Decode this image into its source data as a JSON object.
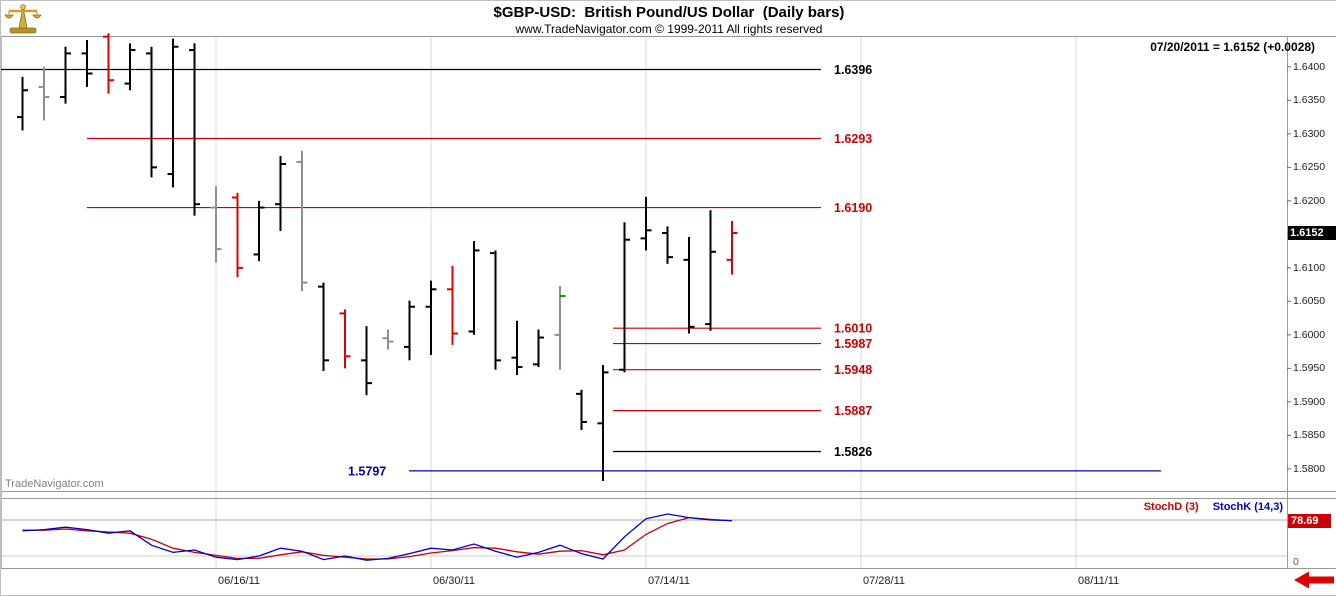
{
  "header": {
    "title": "$GBP-USD:  British Pound/US Dollar  (Daily bars)",
    "copyright": "www.TradeNavigator.com © 1999-2011 All rights reserved",
    "quote_line": "07/20/2011 = 1.6152 (+0.0028)",
    "logo_icon": "balance-scale-icon"
  },
  "watermark": "TradeNavigator.com",
  "price_axis": {
    "tick_labels": [
      "1.6400",
      "1.6350",
      "1.6300",
      "1.6250",
      "1.6200",
      "1.6150",
      "1.6100",
      "1.6050",
      "1.6000",
      "1.5950",
      "1.5900",
      "1.5850",
      "1.5800"
    ],
    "last_price_label": "1.6152"
  },
  "indicator_panel": {
    "legend": [
      {
        "label": "StochD (3)",
        "color": "#cc0000"
      },
      {
        "label": "StochK (14,3)",
        "color": "#0000cc"
      }
    ],
    "last_value_label": "78.69",
    "zero_label": "0",
    "scroll_arrow_icon": "scroll-left-arrow-icon"
  },
  "chart_data": {
    "type": "ohlc-bar-with-stochastic",
    "title": "$GBP-USD: British Pound/US Dollar (Daily bars)",
    "subtitle": "www.TradeNavigator.com © 1999-2011 All rights reserved",
    "quote_date": "07/20/2011",
    "last_price": 1.6152,
    "change": 0.0028,
    "ylim": [
      1.5767,
      1.6446
    ],
    "grid": "vertical-date-lines",
    "bars": [
      {
        "date": "06/03/11",
        "o": 1.6325,
        "h": 1.6385,
        "l": 1.6305,
        "c": 1.6365,
        "color": "black"
      },
      {
        "date": "06/06/11",
        "o": 1.637,
        "h": 1.64,
        "l": 1.632,
        "c": 1.6355,
        "color": "gray"
      },
      {
        "date": "06/07/11",
        "o": 1.6355,
        "h": 1.643,
        "l": 1.6345,
        "c": 1.642,
        "color": "black"
      },
      {
        "date": "06/08/11",
        "o": 1.642,
        "h": 1.644,
        "l": 1.637,
        "c": 1.639,
        "color": "black"
      },
      {
        "date": "06/09/11",
        "o": 1.6445,
        "h": 1.645,
        "l": 1.636,
        "c": 1.638,
        "color": "red"
      },
      {
        "date": "06/10/11",
        "o": 1.6375,
        "h": 1.6435,
        "l": 1.6365,
        "c": 1.6425,
        "color": "black"
      },
      {
        "date": "06/13/11",
        "o": 1.642,
        "h": 1.643,
        "l": 1.6235,
        "c": 1.625,
        "color": "black"
      },
      {
        "date": "06/14/11",
        "o": 1.624,
        "h": 1.6442,
        "l": 1.622,
        "c": 1.643,
        "color": "black"
      },
      {
        "date": "06/15/11",
        "o": 1.6425,
        "h": 1.6435,
        "l": 1.6178,
        "c": 1.6195,
        "color": "black"
      },
      {
        "date": "06/16/11",
        "o": 1.619,
        "h": 1.6222,
        "l": 1.6108,
        "c": 1.6128,
        "color": "gray"
      },
      {
        "date": "06/17/11",
        "o": 1.6205,
        "h": 1.6212,
        "l": 1.6086,
        "c": 1.61,
        "color": "red"
      },
      {
        "date": "06/20/11",
        "o": 1.612,
        "h": 1.62,
        "l": 1.611,
        "c": 1.619,
        "color": "black"
      },
      {
        "date": "06/21/11",
        "o": 1.6195,
        "h": 1.6267,
        "l": 1.6155,
        "c": 1.6255,
        "color": "black"
      },
      {
        "date": "06/22/11",
        "o": 1.6258,
        "h": 1.6275,
        "l": 1.6065,
        "c": 1.6078,
        "color": "gray"
      },
      {
        "date": "06/23/11",
        "o": 1.6072,
        "h": 1.6078,
        "l": 1.5946,
        "c": 1.5962,
        "color": "black"
      },
      {
        "date": "06/24/11",
        "o": 1.6032,
        "h": 1.6038,
        "l": 1.595,
        "c": 1.5968,
        "color": "red"
      },
      {
        "date": "06/27/11",
        "o": 1.5962,
        "h": 1.6013,
        "l": 1.591,
        "c": 1.5928,
        "color": "black"
      },
      {
        "date": "06/28/11",
        "o": 1.5995,
        "h": 1.6008,
        "l": 1.5978,
        "c": 1.599,
        "color": "gray"
      },
      {
        "date": "06/29/11",
        "o": 1.5982,
        "h": 1.6051,
        "l": 1.5962,
        "c": 1.6042,
        "color": "black"
      },
      {
        "date": "06/30/11",
        "o": 1.6042,
        "h": 1.6081,
        "l": 1.597,
        "c": 1.6068,
        "color": "black"
      },
      {
        "date": "07/01/11",
        "o": 1.6068,
        "h": 1.6103,
        "l": 1.5985,
        "c": 1.6002,
        "color": "red"
      },
      {
        "date": "07/04/11",
        "o": 1.6005,
        "h": 1.614,
        "l": 1.6,
        "c": 1.6126,
        "color": "black"
      },
      {
        "date": "07/05/11",
        "o": 1.6122,
        "h": 1.6126,
        "l": 1.5948,
        "c": 1.5962,
        "color": "black"
      },
      {
        "date": "07/06/11",
        "o": 1.5966,
        "h": 1.6021,
        "l": 1.594,
        "c": 1.5952,
        "color": "black"
      },
      {
        "date": "07/07/11",
        "o": 1.5956,
        "h": 1.6008,
        "l": 1.5952,
        "c": 1.5996,
        "color": "black"
      },
      {
        "date": "07/08/11",
        "o": 1.6,
        "h": 1.6073,
        "l": 1.5948,
        "c": 1.6058,
        "color": "gray",
        "close_color": "green"
      },
      {
        "date": "07/11/11",
        "o": 1.5912,
        "h": 1.5918,
        "l": 1.5858,
        "c": 1.587,
        "color": "black"
      },
      {
        "date": "07/12/11",
        "o": 1.5868,
        "h": 1.5955,
        "l": 1.5782,
        "c": 1.5944,
        "color": "black"
      },
      {
        "date": "07/13/11",
        "o": 1.5948,
        "h": 1.6168,
        "l": 1.5944,
        "c": 1.6142,
        "color": "black"
      },
      {
        "date": "07/14/11",
        "o": 1.6144,
        "h": 1.6206,
        "l": 1.6126,
        "c": 1.6156,
        "color": "black"
      },
      {
        "date": "07/15/11",
        "o": 1.6152,
        "h": 1.6162,
        "l": 1.6106,
        "c": 1.6116,
        "color": "black"
      },
      {
        "date": "07/18/11",
        "o": 1.6112,
        "h": 1.6146,
        "l": 1.6002,
        "c": 1.6012,
        "color": "black"
      },
      {
        "date": "07/19/11",
        "o": 1.6016,
        "h": 1.6186,
        "l": 1.6006,
        "c": 1.6124,
        "color": "black"
      },
      {
        "date": "07/20/11",
        "o": 1.6112,
        "h": 1.617,
        "l": 1.609,
        "c": 1.6152,
        "color": "red"
      }
    ],
    "levels": [
      {
        "price": 1.6396,
        "label": "1.6396",
        "color": "#000000",
        "from": 0,
        "to": 820,
        "label_x": 833
      },
      {
        "price": 1.6293,
        "label": "1.6293",
        "color": "#cc0000",
        "from": 86,
        "to": 820,
        "label_x": 833
      },
      {
        "price": 1.619,
        "label": "1.6190",
        "color": "#cc0000",
        "from": 86,
        "to": 820,
        "label_x": 833
      },
      {
        "price": 1.601,
        "label": "1.6010",
        "color": "#cc0000",
        "from": 612,
        "to": 820,
        "label_x": 833
      },
      {
        "price": 1.5987,
        "label": "1.5987",
        "color": "#cc0000",
        "from": 612,
        "to": 820,
        "label_x": 833
      },
      {
        "price": 1.5948,
        "label": "1.5948",
        "color": "#cc0000",
        "from": 612,
        "to": 820,
        "label_x": 833
      },
      {
        "price": 1.5887,
        "label": "1.5887",
        "color": "#cc0000",
        "from": 612,
        "to": 820,
        "label_x": 833
      },
      {
        "price": 1.5826,
        "label": "1.5826",
        "color": "#000000",
        "from": 612,
        "to": 820,
        "label_x": 833
      },
      {
        "price": 1.5797,
        "label": "1.5797",
        "color": "#0000bb",
        "from": 408,
        "to": 1160,
        "label_x": 347
      }
    ],
    "x_ticks": [
      {
        "label": "06/16/11",
        "bar_index": 9
      },
      {
        "label": "06/30/11",
        "bar_index": 19
      },
      {
        "label": "07/14/11",
        "bar_index": 29
      },
      {
        "label": "07/28/11",
        "bar_index": 39
      },
      {
        "label": "08/11/11",
        "bar_index": 49
      }
    ],
    "stochastics": {
      "range": [
        0,
        100
      ],
      "ref_lines": [
        80,
        20
      ],
      "last_d": 78.69,
      "k": {
        "name": "StochK (14,3)",
        "color": "#0000cc",
        "values": [
          62,
          64,
          68,
          64,
          58,
          62,
          38,
          26,
          30,
          18,
          14,
          20,
          33,
          28,
          14,
          20,
          13,
          16,
          24,
          33,
          30,
          40,
          28,
          18,
          26,
          38,
          24,
          15,
          52,
          82,
          90,
          84,
          80,
          79
        ]
      },
      "d": {
        "name": "StochD (3)",
        "color": "#cc0000",
        "values": [
          63,
          63,
          65,
          62,
          60,
          58,
          48,
          33,
          26,
          21,
          16,
          16,
          22,
          27,
          21,
          18,
          15,
          15,
          19,
          25,
          29,
          34,
          33,
          27,
          23,
          28,
          29,
          22,
          30,
          56,
          74,
          84,
          81,
          78.69
        ]
      }
    },
    "bar_colors": {
      "black": "#000000",
      "red": "#dd0000",
      "gray": "#909090",
      "green": "#00a000"
    }
  }
}
